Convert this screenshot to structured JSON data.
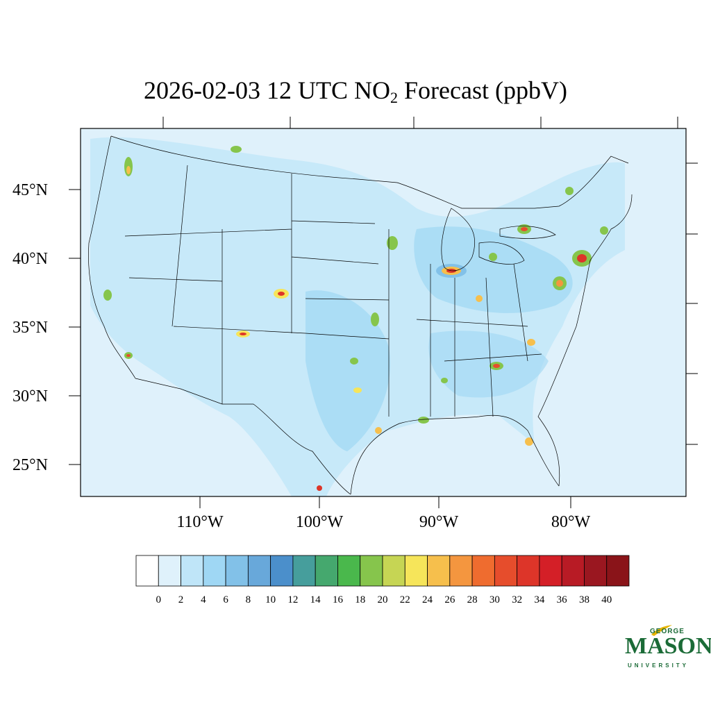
{
  "title": {
    "prefix": "2026-02-03 12 UTC NO",
    "subscript": "2",
    "suffix": " Forecast (ppbV)"
  },
  "lat_labels": [
    "45°N",
    "40°N",
    "35°N",
    "30°N",
    "25°N"
  ],
  "lon_labels": [
    "110°W",
    "100°W",
    "90°W",
    "80°W"
  ],
  "colorbar": {
    "ticks": [
      "0",
      "2",
      "4",
      "6",
      "8",
      "10",
      "12",
      "14",
      "16",
      "18",
      "20",
      "22",
      "24",
      "26",
      "28",
      "30",
      "32",
      "34",
      "36",
      "38",
      "40"
    ],
    "colors": [
      "#ffffff",
      "#dff1fb",
      "#bfe5f8",
      "#9fd7f4",
      "#82c1e8",
      "#68a8da",
      "#4b8fcb",
      "#469e9c",
      "#45a86e",
      "#4ab84c",
      "#86c54c",
      "#c6d554",
      "#f6e55a",
      "#f6bf4c",
      "#f4963f",
      "#ef6c2f",
      "#e64d2c",
      "#dd3529",
      "#d41f27",
      "#b81b25",
      "#9a1720",
      "#8a1419"
    ]
  },
  "logo": {
    "line1": "GEORGE",
    "line2": "MASON",
    "line3": "UNIVERSITY"
  },
  "colors": {
    "background_field": "#dff1fb",
    "brand_green": "#1b6b37",
    "brand_gold": "#e6b400"
  }
}
